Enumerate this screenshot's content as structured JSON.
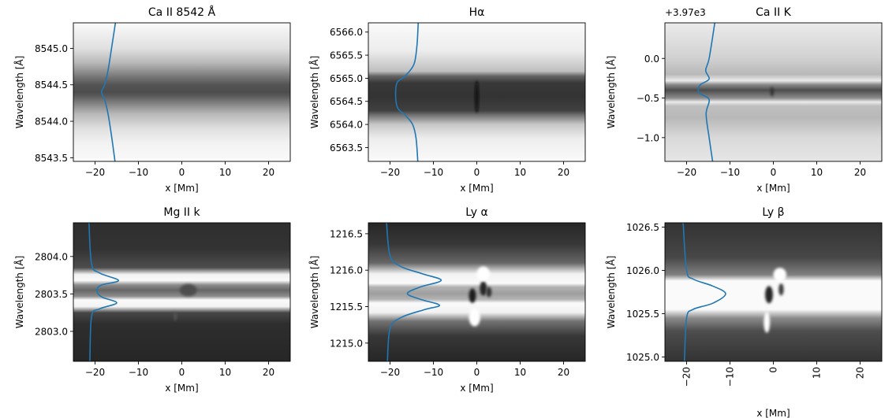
{
  "chart_data": [
    {
      "type": "heatmap",
      "title": "Ca II 8542 Å",
      "xlabel": "x [Mm]",
      "ylabel": "Wavelength [Å]",
      "xlim": [
        -25,
        25
      ],
      "ylim": [
        8543.45,
        8545.35
      ],
      "xticks": [
        -20,
        -10,
        0,
        10,
        20
      ],
      "xtick_labels": [
        "−20",
        "−10",
        "0",
        "10",
        "20"
      ],
      "yticks": [
        8543.5,
        8544.0,
        8544.5,
        8545.0
      ],
      "ytick_labels": [
        "8543.5",
        "8544.0",
        "8544.5",
        "8545.0"
      ],
      "offset_text": "",
      "xtick_rotation": 0,
      "colormap": "gray",
      "line_color": "#1f77b4",
      "band_rows": [
        {
          "y": 8543.45,
          "v": 0.98
        },
        {
          "y": 8543.7,
          "v": 0.95
        },
        {
          "y": 8543.9,
          "v": 0.88
        },
        {
          "y": 8544.1,
          "v": 0.72
        },
        {
          "y": 8544.25,
          "v": 0.5
        },
        {
          "y": 8544.35,
          "v": 0.35
        },
        {
          "y": 8544.4,
          "v": 0.3
        },
        {
          "y": 8544.5,
          "v": 0.33
        },
        {
          "y": 8544.6,
          "v": 0.45
        },
        {
          "y": 8544.8,
          "v": 0.72
        },
        {
          "y": 8545.0,
          "v": 0.88
        },
        {
          "y": 8545.35,
          "v": 0.98
        }
      ],
      "features": [],
      "profile": [
        {
          "x": -15.4,
          "y": 8543.45
        },
        {
          "x": -16.2,
          "y": 8543.8
        },
        {
          "x": -17.0,
          "y": 8544.1
        },
        {
          "x": -17.8,
          "y": 8544.3
        },
        {
          "x": -18.5,
          "y": 8544.4
        },
        {
          "x": -17.8,
          "y": 8544.5
        },
        {
          "x": -17.0,
          "y": 8544.7
        },
        {
          "x": -16.2,
          "y": 8545.0
        },
        {
          "x": -15.3,
          "y": 8545.35
        }
      ]
    },
    {
      "type": "heatmap",
      "title": "Hα",
      "xlabel": "x [Mm]",
      "ylabel": "Wavelength [Å]",
      "xlim": [
        -25,
        25
      ],
      "ylim": [
        6563.2,
        6566.2
      ],
      "xticks": [
        -20,
        -10,
        0,
        10,
        20
      ],
      "xtick_labels": [
        "−20",
        "−10",
        "0",
        "10",
        "20"
      ],
      "yticks": [
        6563.5,
        6564.0,
        6564.5,
        6565.0,
        6565.5,
        6566.0
      ],
      "ytick_labels": [
        "6563.5",
        "6564.0",
        "6564.5",
        "6565.0",
        "6565.5",
        "6566.0"
      ],
      "offset_text": "",
      "xtick_rotation": 0,
      "colormap": "gray",
      "line_color": "#1f77b4",
      "band_rows": [
        {
          "y": 6563.2,
          "v": 0.98
        },
        {
          "y": 6563.7,
          "v": 0.93
        },
        {
          "y": 6564.0,
          "v": 0.78
        },
        {
          "y": 6564.2,
          "v": 0.45
        },
        {
          "y": 6564.3,
          "v": 0.25
        },
        {
          "y": 6564.6,
          "v": 0.2
        },
        {
          "y": 6564.9,
          "v": 0.22
        },
        {
          "y": 6565.05,
          "v": 0.4
        },
        {
          "y": 6565.15,
          "v": 0.75
        },
        {
          "y": 6565.6,
          "v": 0.93
        },
        {
          "y": 6566.2,
          "v": 0.98
        }
      ],
      "features": [
        {
          "x": 0,
          "y": 6564.6,
          "rx": 0.4,
          "ry": 0.35,
          "v": 0.05
        }
      ],
      "profile": [
        {
          "x": -13.6,
          "y": 6563.2
        },
        {
          "x": -14.0,
          "y": 6563.7
        },
        {
          "x": -14.8,
          "y": 6564.0
        },
        {
          "x": -16.5,
          "y": 6564.2
        },
        {
          "x": -18.2,
          "y": 6564.35
        },
        {
          "x": -18.7,
          "y": 6564.6
        },
        {
          "x": -18.4,
          "y": 6564.9
        },
        {
          "x": -16.5,
          "y": 6565.05
        },
        {
          "x": -14.5,
          "y": 6565.3
        },
        {
          "x": -13.8,
          "y": 6565.7
        },
        {
          "x": -13.5,
          "y": 6566.2
        }
      ]
    },
    {
      "type": "heatmap",
      "title": "Ca II K",
      "xlabel": "x [Mm]",
      "ylabel": "Wavelength [Å]",
      "xlim": [
        -25,
        25
      ],
      "ylim": [
        -1.3,
        0.45
      ],
      "xticks": [
        -20,
        -10,
        0,
        10,
        20
      ],
      "xtick_labels": [
        "−20",
        "−10",
        "0",
        "10",
        "20"
      ],
      "yticks": [
        -1.0,
        -0.5,
        0.0
      ],
      "ytick_labels": [
        "−1.0",
        "−0.5",
        "0.0"
      ],
      "offset_text": "+3.97e3",
      "xtick_rotation": 0,
      "colormap": "gray",
      "line_color": "#1f77b4",
      "band_rows": [
        {
          "y": -1.3,
          "v": 0.9
        },
        {
          "y": -1.0,
          "v": 0.85
        },
        {
          "y": -0.75,
          "v": 0.72
        },
        {
          "y": -0.6,
          "v": 0.75
        },
        {
          "y": -0.55,
          "v": 0.92
        },
        {
          "y": -0.5,
          "v": 0.55
        },
        {
          "y": -0.4,
          "v": 0.3
        },
        {
          "y": -0.33,
          "v": 0.55
        },
        {
          "y": -0.28,
          "v": 0.92
        },
        {
          "y": -0.2,
          "v": 0.72
        },
        {
          "y": 0.0,
          "v": 0.82
        },
        {
          "y": 0.45,
          "v": 0.92
        }
      ],
      "features": [
        {
          "x": -0.3,
          "y": -0.42,
          "rx": 0.4,
          "ry": 0.06,
          "v": 0.2
        }
      ],
      "profile": [
        {
          "x": -14.0,
          "y": -1.3
        },
        {
          "x": -14.8,
          "y": -1.0
        },
        {
          "x": -15.5,
          "y": -0.7
        },
        {
          "x": -14.8,
          "y": -0.52
        },
        {
          "x": -16.8,
          "y": -0.45
        },
        {
          "x": -17.3,
          "y": -0.4
        },
        {
          "x": -16.8,
          "y": -0.33
        },
        {
          "x": -14.8,
          "y": -0.26
        },
        {
          "x": -15.6,
          "y": -0.15
        },
        {
          "x": -14.8,
          "y": 0.0
        },
        {
          "x": -13.5,
          "y": 0.45
        }
      ]
    },
    {
      "type": "heatmap",
      "title": "Mg II k",
      "xlabel": "x [Mm]",
      "ylabel": "Wavelength [Å]",
      "xlim": [
        -25,
        25
      ],
      "ylim": [
        2802.6,
        2804.45
      ],
      "xticks": [
        -20,
        -10,
        0,
        10,
        20
      ],
      "xtick_labels": [
        "−20",
        "−10",
        "0",
        "10",
        "20"
      ],
      "yticks": [
        2803.0,
        2803.5,
        2804.0
      ],
      "ytick_labels": [
        "2803.0",
        "2803.5",
        "2804.0"
      ],
      "offset_text": "",
      "xtick_rotation": 0,
      "colormap": "gray",
      "line_color": "#1f77b4",
      "band_rows": [
        {
          "y": 2802.6,
          "v": 0.15
        },
        {
          "y": 2803.1,
          "v": 0.18
        },
        {
          "y": 2803.25,
          "v": 0.28
        },
        {
          "y": 2803.33,
          "v": 0.95
        },
        {
          "y": 2803.42,
          "v": 0.98
        },
        {
          "y": 2803.47,
          "v": 0.55
        },
        {
          "y": 2803.55,
          "v": 0.4
        },
        {
          "y": 2803.62,
          "v": 0.55
        },
        {
          "y": 2803.68,
          "v": 0.98
        },
        {
          "y": 2803.76,
          "v": 0.95
        },
        {
          "y": 2803.85,
          "v": 0.3
        },
        {
          "y": 2804.1,
          "v": 0.2
        },
        {
          "y": 2804.45,
          "v": 0.18
        }
      ],
      "features": [
        {
          "x": 1.5,
          "y": 2803.55,
          "rx": 2.0,
          "ry": 0.08,
          "v": 0.3
        },
        {
          "x": -1.5,
          "y": 2803.2,
          "rx": 0.3,
          "ry": 0.06,
          "v": 0.35
        }
      ],
      "profile": [
        {
          "x": -21.2,
          "y": 2802.6
        },
        {
          "x": -20.8,
          "y": 2803.2
        },
        {
          "x": -19.0,
          "y": 2803.3
        },
        {
          "x": -15.0,
          "y": 2803.38
        },
        {
          "x": -18.5,
          "y": 2803.46
        },
        {
          "x": -19.6,
          "y": 2803.55
        },
        {
          "x": -18.5,
          "y": 2803.62
        },
        {
          "x": -14.6,
          "y": 2803.68
        },
        {
          "x": -19.0,
          "y": 2803.78
        },
        {
          "x": -20.8,
          "y": 2803.9
        },
        {
          "x": -21.4,
          "y": 2804.45
        }
      ]
    },
    {
      "type": "heatmap",
      "title": "Ly α",
      "xlabel": "x [Mm]",
      "ylabel": "Wavelength [Å]",
      "xlim": [
        -25,
        25
      ],
      "ylim": [
        1214.75,
        1216.65
      ],
      "xticks": [
        -20,
        -10,
        0,
        10,
        20
      ],
      "xtick_labels": [
        "−20",
        "−10",
        "0",
        "10",
        "20"
      ],
      "yticks": [
        1215.0,
        1215.5,
        1216.0,
        1216.5
      ],
      "ytick_labels": [
        "1215.0",
        "1215.5",
        "1216.0",
        "1216.5"
      ],
      "offset_text": "",
      "xtick_rotation": 0,
      "colormap": "gray",
      "line_color": "#1f77b4",
      "band_rows": [
        {
          "y": 1214.75,
          "v": 0.15
        },
        {
          "y": 1215.1,
          "v": 0.22
        },
        {
          "y": 1215.3,
          "v": 0.45
        },
        {
          "y": 1215.42,
          "v": 0.95
        },
        {
          "y": 1215.55,
          "v": 0.98
        },
        {
          "y": 1215.6,
          "v": 0.7
        },
        {
          "y": 1215.68,
          "v": 0.62
        },
        {
          "y": 1215.77,
          "v": 0.7
        },
        {
          "y": 1215.82,
          "v": 0.98
        },
        {
          "y": 1215.95,
          "v": 0.95
        },
        {
          "y": 1216.1,
          "v": 0.4
        },
        {
          "y": 1216.35,
          "v": 0.22
        },
        {
          "y": 1216.65,
          "v": 0.15
        }
      ],
      "features": [
        {
          "x": -1.0,
          "y": 1215.65,
          "rx": 0.8,
          "ry": 0.1,
          "v": 0.1
        },
        {
          "x": 1.5,
          "y": 1215.75,
          "rx": 0.8,
          "ry": 0.1,
          "v": 0.15
        },
        {
          "x": 2.8,
          "y": 1215.7,
          "rx": 0.6,
          "ry": 0.07,
          "v": 0.2
        },
        {
          "x": 1.5,
          "y": 1215.95,
          "rx": 1.5,
          "ry": 0.1,
          "v": 1.0
        },
        {
          "x": -0.5,
          "y": 1215.35,
          "rx": 1.3,
          "ry": 0.12,
          "v": 1.0
        }
      ],
      "profile": [
        {
          "x": -20.6,
          "y": 1214.75
        },
        {
          "x": -20.0,
          "y": 1215.2
        },
        {
          "x": -17.5,
          "y": 1215.35
        },
        {
          "x": -12.0,
          "y": 1215.46
        },
        {
          "x": -8.6,
          "y": 1215.52
        },
        {
          "x": -13.0,
          "y": 1215.6
        },
        {
          "x": -16.0,
          "y": 1215.68
        },
        {
          "x": -13.0,
          "y": 1215.77
        },
        {
          "x": -8.2,
          "y": 1215.86
        },
        {
          "x": -12.5,
          "y": 1215.95
        },
        {
          "x": -17.5,
          "y": 1216.05
        },
        {
          "x": -20.0,
          "y": 1216.2
        },
        {
          "x": -20.8,
          "y": 1216.65
        }
      ]
    },
    {
      "type": "heatmap",
      "title": "Ly β",
      "xlabel": "x [Mm]",
      "ylabel": "Wavelength [Å]",
      "xlim": [
        -25,
        25
      ],
      "ylim": [
        1024.95,
        1026.55
      ],
      "xticks": [
        -20,
        -10,
        0,
        10,
        20
      ],
      "xtick_labels": [
        "−20",
        "−10",
        "0",
        "10",
        "20"
      ],
      "yticks": [
        1025.0,
        1025.5,
        1026.0,
        1026.5
      ],
      "ytick_labels": [
        "1025.0",
        "1025.5",
        "1026.0",
        "1026.5"
      ],
      "offset_text": "",
      "xtick_rotation": -90,
      "colormap": "gray",
      "line_color": "#1f77b4",
      "band_rows": [
        {
          "y": 1024.95,
          "v": 0.2
        },
        {
          "y": 1025.3,
          "v": 0.3
        },
        {
          "y": 1025.45,
          "v": 0.55
        },
        {
          "y": 1025.55,
          "v": 0.98
        },
        {
          "y": 1025.88,
          "v": 0.98
        },
        {
          "y": 1025.95,
          "v": 0.5
        },
        {
          "y": 1026.15,
          "v": 0.28
        },
        {
          "y": 1026.55,
          "v": 0.2
        }
      ],
      "features": [
        {
          "x": -1.0,
          "y": 1025.72,
          "rx": 0.9,
          "ry": 0.1,
          "v": 0.15
        },
        {
          "x": 1.8,
          "y": 1025.78,
          "rx": 0.6,
          "ry": 0.07,
          "v": 0.25
        },
        {
          "x": 1.5,
          "y": 1025.95,
          "rx": 1.5,
          "ry": 0.08,
          "v": 1.0
        },
        {
          "x": -1.5,
          "y": 1025.4,
          "rx": 0.7,
          "ry": 0.12,
          "v": 1.0
        }
      ],
      "profile": [
        {
          "x": -20.5,
          "y": 1024.95
        },
        {
          "x": -20.0,
          "y": 1025.45
        },
        {
          "x": -18.5,
          "y": 1025.55
        },
        {
          "x": -14.0,
          "y": 1025.62
        },
        {
          "x": -11.0,
          "y": 1025.73
        },
        {
          "x": -14.0,
          "y": 1025.82
        },
        {
          "x": -18.5,
          "y": 1025.9
        },
        {
          "x": -20.0,
          "y": 1026.0
        },
        {
          "x": -20.8,
          "y": 1026.55
        }
      ]
    }
  ]
}
